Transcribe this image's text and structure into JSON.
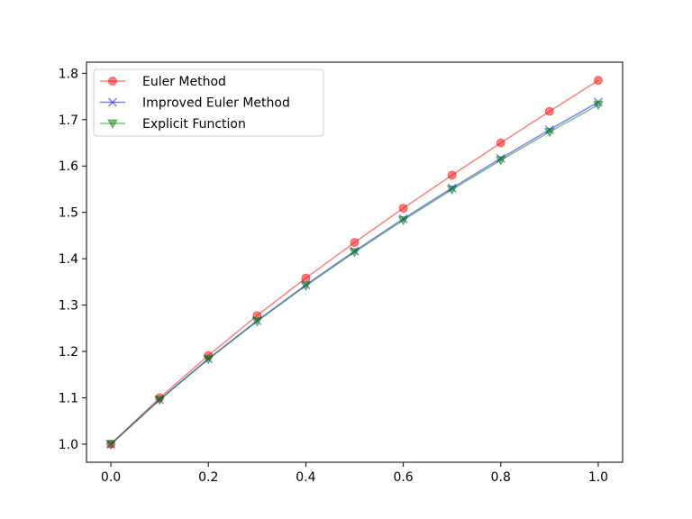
{
  "chart_data": {
    "type": "line",
    "title": "",
    "xlabel": "",
    "ylabel": "",
    "x": [
      0.0,
      0.1,
      0.2,
      0.3,
      0.4,
      0.5,
      0.6,
      0.7,
      0.8,
      0.9,
      1.0
    ],
    "xlim": [
      -0.05,
      1.05
    ],
    "ylim": [
      0.961,
      1.824
    ],
    "xticks": [
      "0.0",
      "0.2",
      "0.4",
      "0.6",
      "0.8",
      "1.0"
    ],
    "yticks": [
      "1.0",
      "1.1",
      "1.2",
      "1.3",
      "1.4",
      "1.5",
      "1.6",
      "1.7",
      "1.8"
    ],
    "grid": false,
    "legend_position": "upper-left",
    "series": [
      {
        "name": "Euler Method",
        "color": "#ff0000",
        "marker": "circle",
        "values": [
          1.0,
          1.1,
          1.191,
          1.2774,
          1.3582,
          1.4351,
          1.509,
          1.5803,
          1.6498,
          1.7178,
          1.7848
        ]
      },
      {
        "name": "Improved Euler Method",
        "color": "#0000ff",
        "marker": "x",
        "values": [
          1.0,
          1.0959,
          1.1841,
          1.2662,
          1.3434,
          1.4164,
          1.486,
          1.5525,
          1.6165,
          1.6782,
          1.7379
        ]
      },
      {
        "name": "Explicit Function",
        "color": "#008000",
        "marker": "triangle-down",
        "values": [
          1.0,
          1.0954,
          1.1832,
          1.2649,
          1.3416,
          1.4142,
          1.4832,
          1.5492,
          1.6125,
          1.6733,
          1.7321
        ]
      }
    ]
  }
}
